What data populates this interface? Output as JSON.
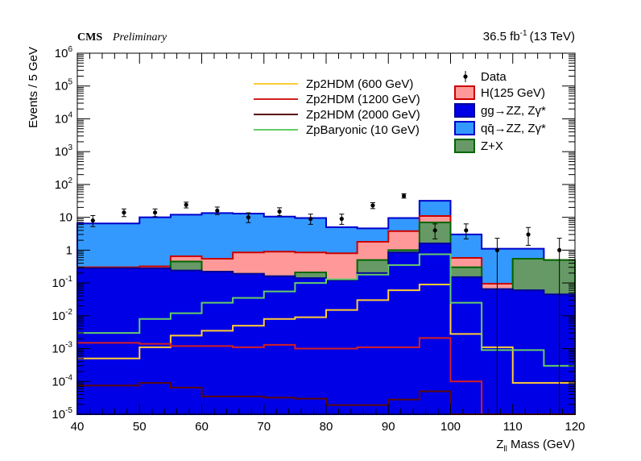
{
  "header": {
    "experiment": "CMS",
    "status": "Preliminary",
    "lumi_value": "36.5 fb",
    "lumi_exp": "-1",
    "energy": "(13 TeV)"
  },
  "chart_data": {
    "type": "histogram",
    "title": "",
    "xlabel": "Z_ll Mass (GeV)",
    "xlabel_main": "Z",
    "xlabel_sub": "ll",
    "xlabel_rest": " Mass (GeV)",
    "ylabel": "Events / 5 GeV",
    "xlim": [
      40,
      120
    ],
    "ylim": [
      1e-05,
      1000000
    ],
    "yscale": "log",
    "x_ticks": [
      "40",
      "50",
      "60",
      "70",
      "80",
      "90",
      "100",
      "110",
      "120"
    ],
    "y_ticks": [
      {
        "value": 1e-05,
        "base": "10",
        "exp": "-5"
      },
      {
        "value": 0.0001,
        "base": "10",
        "exp": "-4"
      },
      {
        "value": 0.001,
        "base": "10",
        "exp": "-3"
      },
      {
        "value": 0.01,
        "base": "10",
        "exp": "-2"
      },
      {
        "value": 0.1,
        "base": "10",
        "exp": "-1"
      },
      {
        "value": 1,
        "base": "1",
        "exp": ""
      },
      {
        "value": 10,
        "base": "10",
        "exp": ""
      },
      {
        "value": 100,
        "base": "10",
        "exp": "2"
      },
      {
        "value": 1000,
        "base": "10",
        "exp": "3"
      },
      {
        "value": 10000,
        "base": "10",
        "exp": "4"
      },
      {
        "value": 100000,
        "base": "10",
        "exp": "5"
      },
      {
        "value": 1000000,
        "base": "10",
        "exp": "6"
      }
    ],
    "bin_edges": [
      40,
      45,
      50,
      55,
      60,
      65,
      70,
      75,
      80,
      85,
      90,
      95,
      100,
      105,
      110,
      115,
      120
    ],
    "stack_order_bottom_to_top": [
      "gg",
      "zx",
      "h",
      "qq"
    ],
    "stacked_totals": {
      "gg": [
        0.28,
        0.28,
        0.28,
        0.24,
        0.22,
        0.19,
        0.16,
        0.14,
        0.12,
        0.2,
        0.85,
        1.6,
        0.15,
        0.065,
        0.06,
        0.045
      ],
      "zx": [
        0.28,
        0.28,
        0.28,
        0.45,
        0.22,
        0.19,
        0.16,
        0.21,
        0.12,
        0.5,
        1.0,
        7.0,
        0.3,
        0.065,
        0.55,
        0.5
      ],
      "h": [
        0.3,
        0.3,
        0.32,
        0.65,
        0.55,
        0.85,
        0.9,
        0.85,
        0.8,
        1.8,
        3.8,
        11.0,
        0.58,
        0.095,
        0.55,
        0.5
      ],
      "qq": [
        6.5,
        6.5,
        10.0,
        12.0,
        13.5,
        13.0,
        10.5,
        9.5,
        5.0,
        4.6,
        9.5,
        32.0,
        3.0,
        1.1,
        1.1,
        0.35
      ]
    },
    "signals": [
      {
        "name": "Zp2HDM (600 GeV)",
        "color": "#ffcc33",
        "values": [
          0.0005,
          0.0005,
          0.0011,
          0.0025,
          0.0035,
          0.005,
          0.008,
          0.009,
          0.015,
          0.03,
          0.06,
          0.09,
          0.0028,
          0.0011,
          9e-05,
          9e-05
        ]
      },
      {
        "name": "Zp2HDM (1200 GeV)",
        "color": "#d42020",
        "values": [
          0.0015,
          0.0015,
          0.0014,
          0.0012,
          0.0012,
          0.0011,
          0.0013,
          0.001,
          0.001,
          0.0011,
          0.0011,
          0.0021,
          0.0001,
          1e-05,
          1e-05,
          1e-05
        ]
      },
      {
        "name": "Zp2HDM (2000 GeV)",
        "color": "#5a0a0a",
        "values": [
          7.5e-05,
          7.5e-05,
          9e-05,
          6.5e-05,
          3.5e-05,
          3.5e-05,
          3.2e-05,
          3e-05,
          1.9e-05,
          1.9e-05,
          2.8e-05,
          5e-05,
          1e-05,
          1e-05,
          1e-05,
          1e-05
        ]
      },
      {
        "name": "ZpBaryonic (10 GeV)",
        "color": "#66cc66",
        "values": [
          0.003,
          0.003,
          0.008,
          0.012,
          0.025,
          0.035,
          0.055,
          0.1,
          0.13,
          0.18,
          0.35,
          0.75,
          0.025,
          0.0009,
          0.0009,
          0.0003
        ]
      }
    ],
    "backgrounds_legend": [
      {
        "name": "H(125 GeV)",
        "fill": "#ff9999",
        "stroke": "#cc0000"
      },
      {
        "name": "gg→ZZ, Zγ*",
        "fill": "#0000e6",
        "stroke": "#000099"
      },
      {
        "name": "qq̄→ZZ, Zγ*",
        "fill": "#3399ff",
        "stroke": "#0000cc"
      },
      {
        "name": "Z+X",
        "fill": "#669966",
        "stroke": "#006600"
      }
    ],
    "data_label": "Data",
    "data_points": [
      {
        "x": 42.5,
        "y": 8,
        "lo": 5.2,
        "hi": 11.3
      },
      {
        "x": 47.5,
        "y": 14,
        "lo": 10.5,
        "hi": 18
      },
      {
        "x": 52.5,
        "y": 14,
        "lo": 10.5,
        "hi": 18
      },
      {
        "x": 57.5,
        "y": 24,
        "lo": 19.3,
        "hi": 29
      },
      {
        "x": 62.5,
        "y": 16,
        "lo": 12.1,
        "hi": 20.5
      },
      {
        "x": 67.5,
        "y": 10,
        "lo": 6.9,
        "hi": 13.7
      },
      {
        "x": 72.5,
        "y": 15,
        "lo": 11.2,
        "hi": 19.5
      },
      {
        "x": 77.5,
        "y": 9,
        "lo": 6.1,
        "hi": 12.5
      },
      {
        "x": 82.5,
        "y": 9,
        "lo": 6.1,
        "hi": 12.5
      },
      {
        "x": 87.5,
        "y": 23,
        "lo": 18.4,
        "hi": 28
      },
      {
        "x": 92.5,
        "y": 45,
        "lo": 38.5,
        "hi": 52
      },
      {
        "x": 97.5,
        "y": 4,
        "lo": 2.2,
        "hi": 6.3
      },
      {
        "x": 102.5,
        "y": 4,
        "lo": 2.2,
        "hi": 6.3
      },
      {
        "x": 107.5,
        "y": 1,
        "lo": 1e-07,
        "hi": 2.3
      },
      {
        "x": 112.5,
        "y": 3,
        "lo": 1.4,
        "hi": 4.9
      },
      {
        "x": 117.5,
        "y": 1,
        "lo": 1e-07,
        "hi": 2.3
      }
    ],
    "grid": false
  }
}
